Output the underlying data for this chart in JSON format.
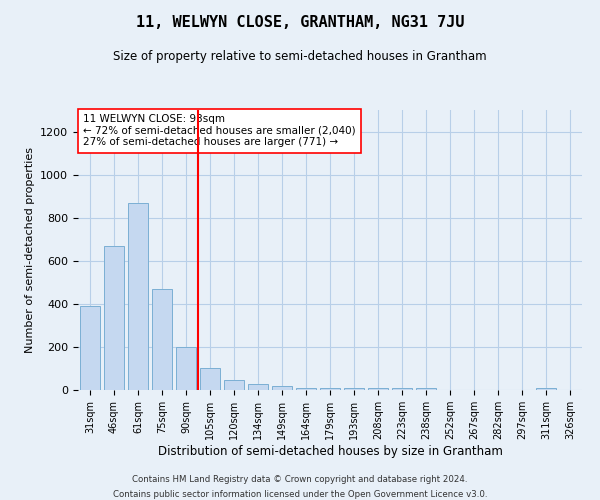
{
  "title": "11, WELWYN CLOSE, GRANTHAM, NG31 7JU",
  "subtitle": "Size of property relative to semi-detached houses in Grantham",
  "xlabel": "Distribution of semi-detached houses by size in Grantham",
  "ylabel": "Number of semi-detached properties",
  "categories": [
    "31sqm",
    "46sqm",
    "61sqm",
    "75sqm",
    "90sqm",
    "105sqm",
    "120sqm",
    "134sqm",
    "149sqm",
    "164sqm",
    "179sqm",
    "193sqm",
    "208sqm",
    "223sqm",
    "238sqm",
    "252sqm",
    "267sqm",
    "282sqm",
    "297sqm",
    "311sqm",
    "326sqm"
  ],
  "values": [
    390,
    670,
    870,
    470,
    200,
    100,
    45,
    30,
    20,
    10,
    10,
    10,
    8,
    8,
    10,
    0,
    0,
    0,
    0,
    10,
    0
  ],
  "bar_color": "#c5d8f0",
  "bar_edge_color": "#7bafd4",
  "grid_color": "#b8cfe8",
  "background_color": "#e8f0f8",
  "annotation_text": "11 WELWYN CLOSE: 93sqm\n← 72% of semi-detached houses are smaller (2,040)\n27% of semi-detached houses are larger (771) →",
  "property_line_color": "red",
  "property_line_index": 4,
  "annotation_box_color": "white",
  "annotation_box_edge_color": "red",
  "ylim": [
    0,
    1300
  ],
  "yticks": [
    0,
    200,
    400,
    600,
    800,
    1000,
    1200
  ],
  "footer1": "Contains HM Land Registry data © Crown copyright and database right 2024.",
  "footer2": "Contains public sector information licensed under the Open Government Licence v3.0."
}
